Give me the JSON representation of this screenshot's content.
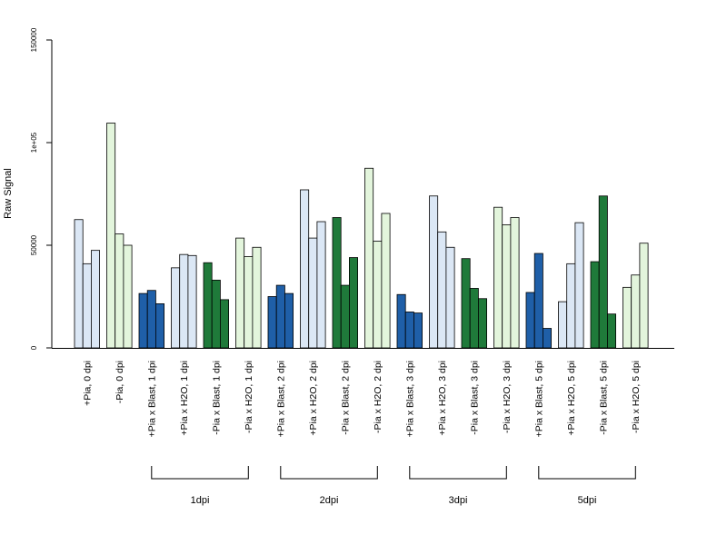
{
  "chart_data": {
    "type": "bar",
    "ylabel": "Raw Signal",
    "ylim": [
      0,
      150000
    ],
    "yticks": [
      {
        "value": 0,
        "label": "0"
      },
      {
        "value": 50000,
        "label": "50000"
      },
      {
        "value": 100000,
        "label": "1e+05"
      },
      {
        "value": 150000,
        "label": "150000"
      }
    ],
    "grid": false,
    "legend": "none",
    "colors": {
      "light_blue": "#dbe7f5",
      "dark_blue": "#1f5fa8",
      "dark_green": "#1f7a3a",
      "light_green": "#e3f5dc",
      "axis": "#000000"
    },
    "groups": [
      {
        "label": "+Pia, 0 dpi",
        "color": "light_blue",
        "values": [
          62500,
          41000,
          47500
        ]
      },
      {
        "label": "-Pia, 0 dpi",
        "color": "light_green",
        "values": [
          109500,
          55500,
          50000
        ]
      },
      {
        "label": "+Pia x Blast, 1 dpi",
        "color": "dark_blue",
        "values": [
          26500,
          28000,
          21500
        ]
      },
      {
        "label": "+Pia x H2O, 1 dpi",
        "color": "light_blue",
        "values": [
          39000,
          45500,
          45000
        ]
      },
      {
        "label": "-Pia x Blast, 1 dpi",
        "color": "dark_green",
        "values": [
          41500,
          33000,
          23500
        ]
      },
      {
        "label": "-Pia x H2O, 1 dpi",
        "color": "light_green",
        "values": [
          53500,
          44500,
          49000
        ]
      },
      {
        "label": "+Pia x Blast, 2 dpi",
        "color": "dark_blue",
        "values": [
          25000,
          30500,
          26500
        ]
      },
      {
        "label": "+Pia x H2O, 2 dpi",
        "color": "light_blue",
        "values": [
          77000,
          53500,
          61500
        ]
      },
      {
        "label": "-Pia x Blast, 2 dpi",
        "color": "dark_green",
        "values": [
          63500,
          30500,
          44000
        ]
      },
      {
        "label": "-Pia x H2O, 2 dpi",
        "color": "light_green",
        "values": [
          87500,
          52000,
          65500
        ]
      },
      {
        "label": "+Pia x Blast, 3 dpi",
        "color": "dark_blue",
        "values": [
          26000,
          17500,
          17000
        ]
      },
      {
        "label": "+Pia x H2O, 3 dpi",
        "color": "light_blue",
        "values": [
          74000,
          56500,
          49000
        ]
      },
      {
        "label": "-Pia x Blast, 3 dpi",
        "color": "dark_green",
        "values": [
          43500,
          29000,
          24000
        ]
      },
      {
        "label": "-Pia x H2O, 3 dpi",
        "color": "light_green",
        "values": [
          68500,
          60000,
          63500
        ]
      },
      {
        "label": "+Pia x Blast, 5 dpi",
        "color": "dark_blue",
        "values": [
          27000,
          46000,
          9500
        ]
      },
      {
        "label": "+Pia x H2O, 5 dpi",
        "color": "light_blue",
        "values": [
          22500,
          41000,
          61000
        ]
      },
      {
        "label": "-Pia x Blast, 5 dpi",
        "color": "dark_green",
        "values": [
          42000,
          74000,
          16500
        ]
      },
      {
        "label": "-Pia x H2O, 5 dpi",
        "color": "light_green",
        "values": [
          29500,
          35500,
          51000
        ]
      }
    ],
    "brackets": [
      {
        "label": "1dpi",
        "from_group": 2,
        "to_group": 5
      },
      {
        "label": "2dpi",
        "from_group": 6,
        "to_group": 9
      },
      {
        "label": "3dpi",
        "from_group": 10,
        "to_group": 13
      },
      {
        "label": "5dpi",
        "from_group": 14,
        "to_group": 17
      }
    ]
  }
}
